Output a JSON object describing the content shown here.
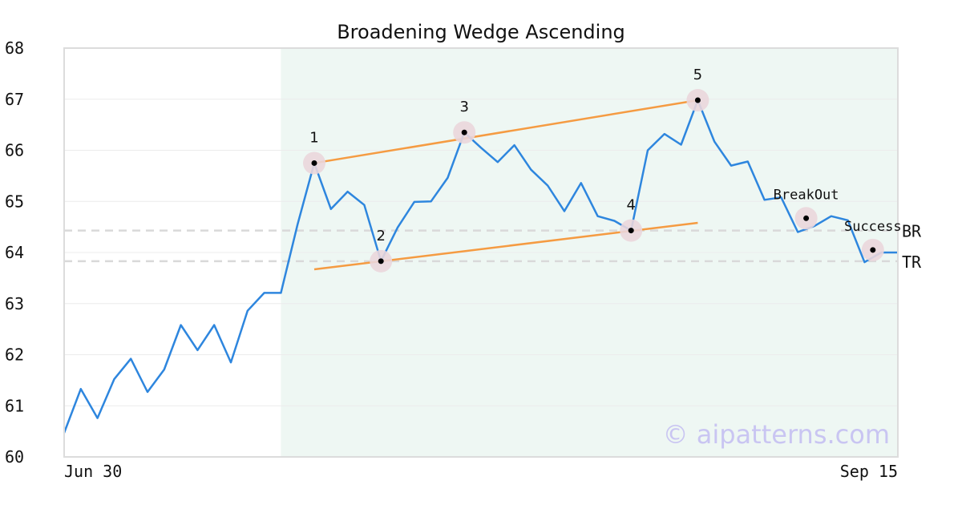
{
  "chart_data": {
    "type": "line",
    "title": "Broadening Wedge Ascending",
    "watermark": "© aipatterns.com",
    "xlabel": "",
    "ylabel": "",
    "ylim": [
      60,
      68
    ],
    "yticks": [
      "60",
      "61",
      "62",
      "63",
      "64",
      "65",
      "66",
      "67",
      "68"
    ],
    "xticks": [
      {
        "index": 0,
        "label": "Jun 30"
      },
      {
        "index": 50,
        "label": "Sep 15"
      }
    ],
    "grid": true,
    "colors": {
      "line": "#2e86de",
      "trend": "#f59b42",
      "band": "#eef7f3",
      "marker_ring": "#ead6dc",
      "level": "#d9d9d9"
    },
    "series": [
      {
        "values": [
          60.47,
          61.33,
          60.76,
          61.52,
          61.92,
          61.27,
          61.71,
          62.58,
          62.09,
          62.58,
          61.85,
          62.86,
          63.21,
          63.21,
          64.55,
          65.75,
          64.85,
          65.19,
          64.93,
          63.83,
          64.49,
          64.99,
          65.0,
          65.46,
          66.35,
          66.05,
          65.77,
          66.1,
          65.62,
          65.31,
          64.81,
          65.36,
          64.71,
          64.62,
          64.43,
          66.0,
          66.32,
          66.11,
          66.98,
          66.17,
          65.7,
          65.78,
          65.03,
          65.08,
          64.4,
          64.52,
          64.71,
          64.63,
          63.81,
          64.0,
          64.0
        ]
      }
    ],
    "pattern_band": {
      "from_index": 13,
      "to_index": 50
    },
    "pattern_points": [
      {
        "label": "1",
        "index": 15,
        "value": 65.75
      },
      {
        "label": "2",
        "index": 19,
        "value": 63.83
      },
      {
        "label": "3",
        "index": 24,
        "value": 66.35
      },
      {
        "label": "4",
        "index": 34,
        "value": 64.43
      },
      {
        "label": "5",
        "index": 38,
        "value": 66.98
      }
    ],
    "annotations": [
      {
        "label": "BreakOut",
        "index": 44.5,
        "value": 64.67
      },
      {
        "label": "Success",
        "index": 48.5,
        "value": 64.05
      }
    ],
    "trendlines": [
      {
        "name": "upper",
        "from": {
          "index": 15,
          "value": 65.75
        },
        "to": {
          "index": 38,
          "value": 66.98
        }
      },
      {
        "name": "lower",
        "from": {
          "index": 15,
          "value": 63.67
        },
        "to": {
          "index": 38,
          "value": 64.58
        }
      }
    ],
    "levels": [
      {
        "label": "BR",
        "value": 64.43
      },
      {
        "label": "TR",
        "value": 63.83
      }
    ]
  }
}
